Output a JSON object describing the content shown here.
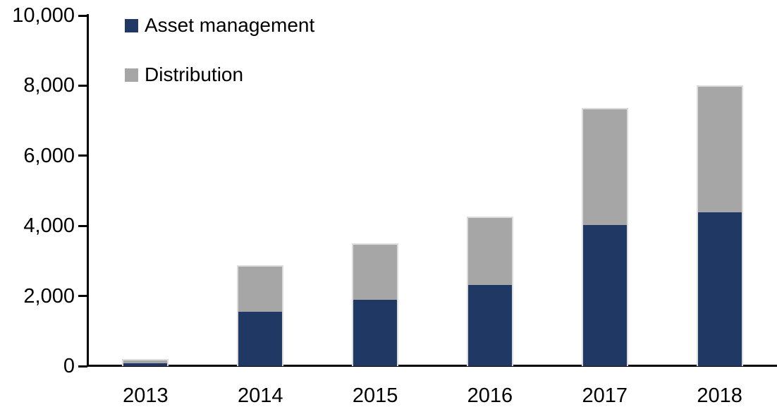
{
  "chart_data": {
    "type": "bar",
    "stacked": true,
    "title": "",
    "xlabel": "",
    "ylabel": "",
    "categories": [
      "2013",
      "2014",
      "2015",
      "2016",
      "2017",
      "2018"
    ],
    "series": [
      {
        "name": "Asset management",
        "color": "#1F3864",
        "values": [
          100,
          1560,
          1900,
          2320,
          4040,
          4400
        ]
      },
      {
        "name": "Distribution",
        "color": "#A6A6A6",
        "values": [
          100,
          1320,
          1600,
          1940,
          3320,
          3600
        ]
      }
    ],
    "totals": [
      200,
      2880,
      3500,
      4260,
      7360,
      8000
    ],
    "ylim": [
      0,
      10000
    ],
    "y_ticks": [
      {
        "label": "0",
        "value": 0
      },
      {
        "label": "2,000",
        "value": 2000
      },
      {
        "label": "4,000",
        "value": 4000
      },
      {
        "label": "6,000",
        "value": 6000
      },
      {
        "label": "8,000",
        "value": 8000
      },
      {
        "label": "10,000",
        "value": 10000
      }
    ],
    "grid": false,
    "legend_position": "inside-top-left",
    "axis_color": "#000000",
    "bar_border_color": "#DCDCDC",
    "background_color": "#FFFFFF"
  }
}
